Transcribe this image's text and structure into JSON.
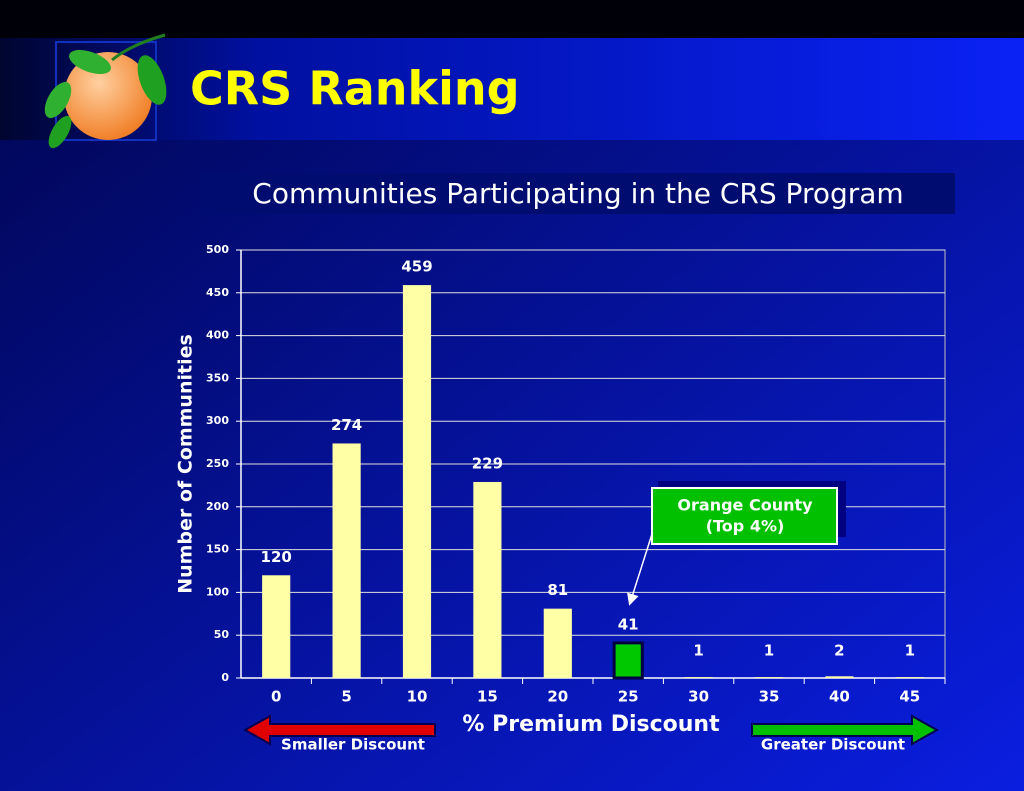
{
  "chart_data": {
    "type": "bar",
    "title": "CRS Ranking",
    "subtitle": "Communities Participating in the CRS Program",
    "y_label": "Number of Communities",
    "x_label": "% Premium Discount",
    "categories": [
      "0",
      "5",
      "10",
      "15",
      "20",
      "25",
      "30",
      "35",
      "40",
      "45"
    ],
    "values": [
      120,
      274,
      459,
      229,
      81,
      41,
      1,
      1,
      2,
      1
    ],
    "colors": [
      "#ffffa6",
      "#ffffa6",
      "#ffffa6",
      "#ffffa6",
      "#ffffa6",
      "#00c800",
      "#ffffa6",
      "#ffffa6",
      "#ffffa6",
      "#ffffa6"
    ],
    "ylim": [
      0,
      500
    ],
    "yticks": [
      0,
      50,
      100,
      150,
      200,
      250,
      300,
      350,
      400,
      450,
      500
    ],
    "grid": true,
    "annotation": [
      "Orange County",
      "(Top 4%)"
    ],
    "left_arrow_label": "Smaller Discount",
    "right_arrow_label": "Greater Discount"
  }
}
